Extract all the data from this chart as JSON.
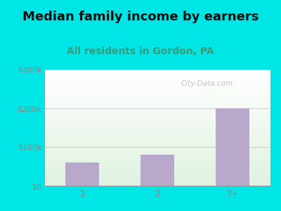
{
  "title": "Median family income by earners",
  "subtitle": "All residents in Gordon, PA",
  "categories": [
    "1",
    "2",
    "3+"
  ],
  "values": [
    60000,
    80000,
    200000
  ],
  "bar_color": "#b8a8cc",
  "title_fontsize": 13,
  "subtitle_fontsize": 10,
  "subtitle_color": "#3a9a7a",
  "title_color": "#111111",
  "outer_bg": "#00e5e5",
  "ylim": [
    0,
    300000
  ],
  "yticks": [
    0,
    100000,
    200000,
    300000
  ],
  "ytick_labels": [
    "$0",
    "$100k",
    "$200k",
    "$300k"
  ],
  "tick_color": "#888888",
  "grid_color": "#cccccc",
  "watermark": "City-Data.com"
}
